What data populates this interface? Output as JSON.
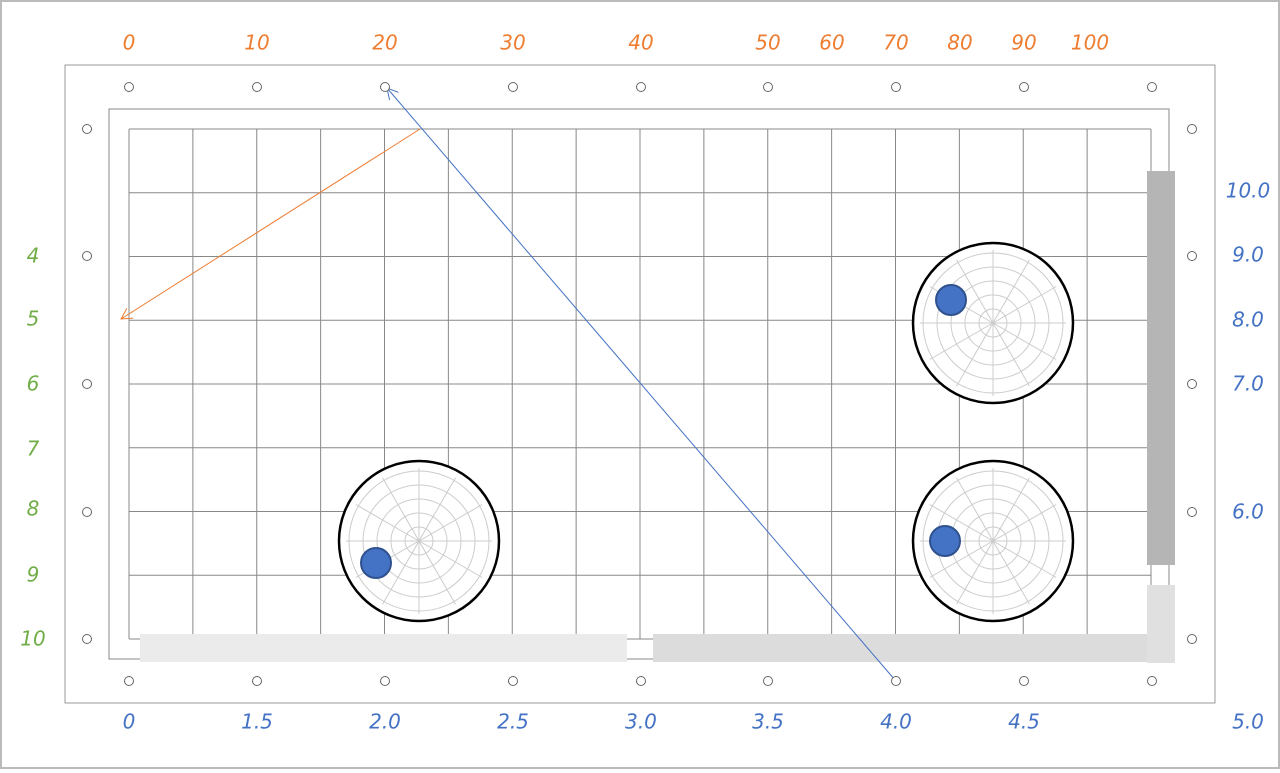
{
  "top_labels": [
    "0",
    "10",
    "20",
    "30",
    "40",
    "50",
    "60",
    "70",
    "80",
    "90",
    "100"
  ],
  "left_labels": [
    "4",
    "5",
    "6",
    "7",
    "8",
    "9",
    "10"
  ],
  "right_labels": [
    "10.0",
    "9.0",
    "8.0",
    "7.0",
    "6.0"
  ],
  "bottom_labels": [
    "0",
    "1.5",
    "2.0",
    "2.5",
    "3.0",
    "3.5",
    "4.0",
    "4.5",
    "5.0"
  ]
}
